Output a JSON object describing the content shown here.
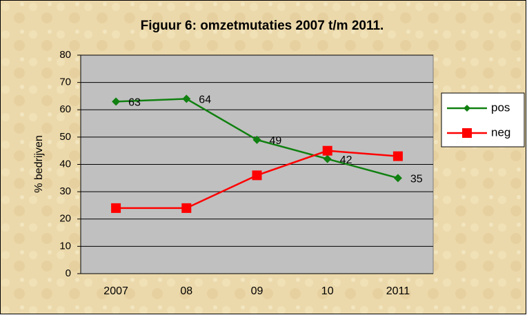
{
  "chart_data": {
    "type": "line",
    "title": "Figuur 6: omzetmutaties 2007 t/m 2011.",
    "y_label": "% bedrijven",
    "categories": [
      "2007",
      "08",
      "09",
      "10",
      "2011"
    ],
    "series": [
      {
        "name": "pos",
        "color": "#108010",
        "marker": "diamond",
        "values": [
          63,
          64,
          49,
          42,
          35
        ],
        "data_labels": true
      },
      {
        "name": "neg",
        "color": "#ff0000",
        "marker": "square",
        "values": [
          24,
          24,
          36,
          45,
          43
        ],
        "data_labels": false
      }
    ],
    "ylim": [
      0,
      80
    ],
    "yticks": [
      0,
      10,
      20,
      30,
      40,
      50,
      60,
      70,
      80
    ],
    "grid": true,
    "legend": "right"
  }
}
